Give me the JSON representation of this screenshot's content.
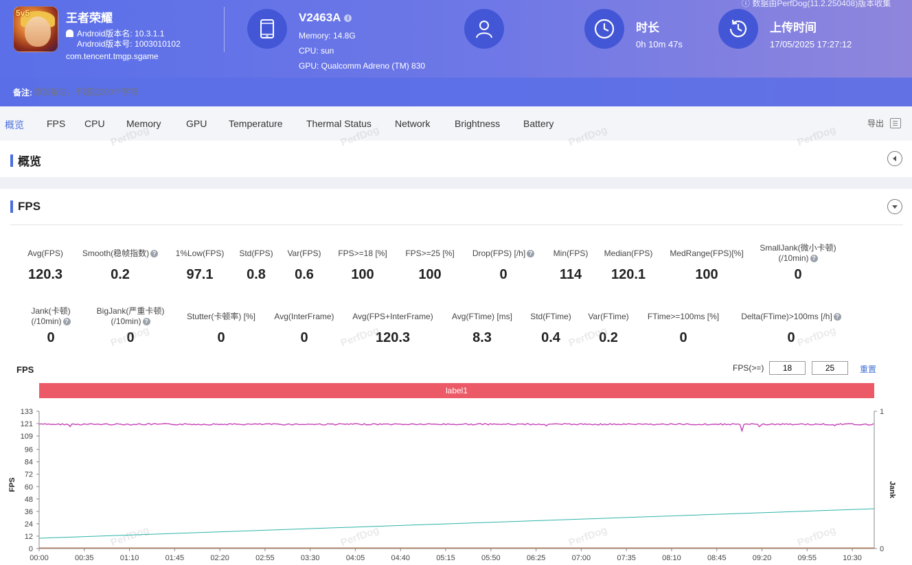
{
  "header": {
    "app": {
      "badge": "5v5",
      "name": "王者荣耀",
      "version_name": "Android版本名: 10.3.1.1",
      "version_code": "Android版本号: 1003010102",
      "package": "com.tencent.tmgp.sgame"
    },
    "device": {
      "name": "V2463A",
      "info_icon": "i",
      "memory": "Memory: 14.8G",
      "cpu": "CPU: sun",
      "gpu": "GPU: Qualcomm Adreno (TM) 830"
    },
    "duration": {
      "title": "时长",
      "value": "0h 10m 47s"
    },
    "upload": {
      "title": "上传时间",
      "value": "17/05/2025 17:27:12"
    },
    "source_note": "ⓘ 数据由PerfDog(11.2.250408)版本收集",
    "remark": {
      "label": "备注:",
      "placeholder": "添加备注，不超过200个字符"
    }
  },
  "tabs": [
    "概览",
    "FPS",
    "CPU",
    "Memory",
    "GPU",
    "Temperature",
    "Thermal Status",
    "Network",
    "Brightness",
    "Battery"
  ],
  "active_tab": "概览",
  "export_label": "导出",
  "overview": {
    "title": "概览"
  },
  "fps_section": {
    "title": "FPS",
    "metrics_row1": [
      {
        "label": "Avg(FPS)",
        "value": "120.3"
      },
      {
        "label": "Smooth(稳帧指数)",
        "value": "0.2",
        "help": true
      },
      {
        "label": "1%Low(FPS)",
        "value": "97.1"
      },
      {
        "label": "Std(FPS)",
        "value": "0.8"
      },
      {
        "label": "Var(FPS)",
        "value": "0.6"
      },
      {
        "label": "FPS>=18 [%]",
        "value": "100"
      },
      {
        "label": "FPS>=25 [%]",
        "value": "100"
      },
      {
        "label": "Drop(FPS) [/h]",
        "value": "0",
        "help": true
      },
      {
        "label": "Min(FPS)",
        "value": "114"
      },
      {
        "label": "Median(FPS)",
        "value": "120.1"
      },
      {
        "label": "MedRange(FPS)[%]",
        "value": "100"
      },
      {
        "label": "SmallJank(微小卡顿)",
        "label2": "(/10min)",
        "value": "0",
        "help": true
      }
    ],
    "metrics_row2": [
      {
        "label": "Jank(卡顿)",
        "label2": "(/10min)",
        "value": "0",
        "help": true
      },
      {
        "label": "BigJank(严重卡顿)",
        "label2": "(/10min)",
        "value": "0",
        "help": true
      },
      {
        "label": "Stutter(卡顿率) [%]",
        "value": "0"
      },
      {
        "label": "Avg(InterFrame)",
        "value": "0"
      },
      {
        "label": "Avg(FPS+InterFrame)",
        "value": "120.3"
      },
      {
        "label": "Avg(FTime) [ms]",
        "value": "8.3"
      },
      {
        "label": "Std(FTime)",
        "value": "0.4"
      },
      {
        "label": "Var(FTime)",
        "value": "0.2"
      },
      {
        "label": "FTime>=100ms [%]",
        "value": "0"
      },
      {
        "label": "Delta(FTime)>100ms [/h]",
        "value": "0",
        "help": true
      }
    ],
    "watermark": "PerfDog",
    "chart_title": "FPS",
    "threshold_label": "FPS(>=)",
    "threshold_values": [
      "18",
      "25"
    ],
    "reset_label": "重置",
    "label_band": "label1"
  },
  "colors": {
    "accent": "#4a6ee0",
    "fps_line": "#c43fb5",
    "jank_line": "#2bb3a8",
    "label_band": "#ec5a67"
  },
  "chart_data": {
    "type": "line",
    "title": "FPS",
    "ylabel": "FPS",
    "y2label": "Jank",
    "ylim": [
      0,
      133
    ],
    "y_ticks": [
      "0",
      "12",
      "24",
      "36",
      "48",
      "60",
      "72",
      "84",
      "96",
      "109",
      "121",
      "133"
    ],
    "y2_ticks": [
      "0",
      "1"
    ],
    "x_ticks": [
      "00:00",
      "00:35",
      "01:10",
      "01:45",
      "02:20",
      "02:55",
      "03:30",
      "04:05",
      "04:40",
      "05:15",
      "05:50",
      "06:25",
      "07:00",
      "07:35",
      "08:10",
      "08:45",
      "09:20",
      "09:55",
      "10:30"
    ],
    "x_range_seconds": [
      0,
      647
    ],
    "series": [
      {
        "values_approx": {
          "mean": 120.3,
          "min": 114,
          "max": 121
        }
      },
      {
        "y_start": 10,
        "y_end": 38.5
      }
    ]
  }
}
